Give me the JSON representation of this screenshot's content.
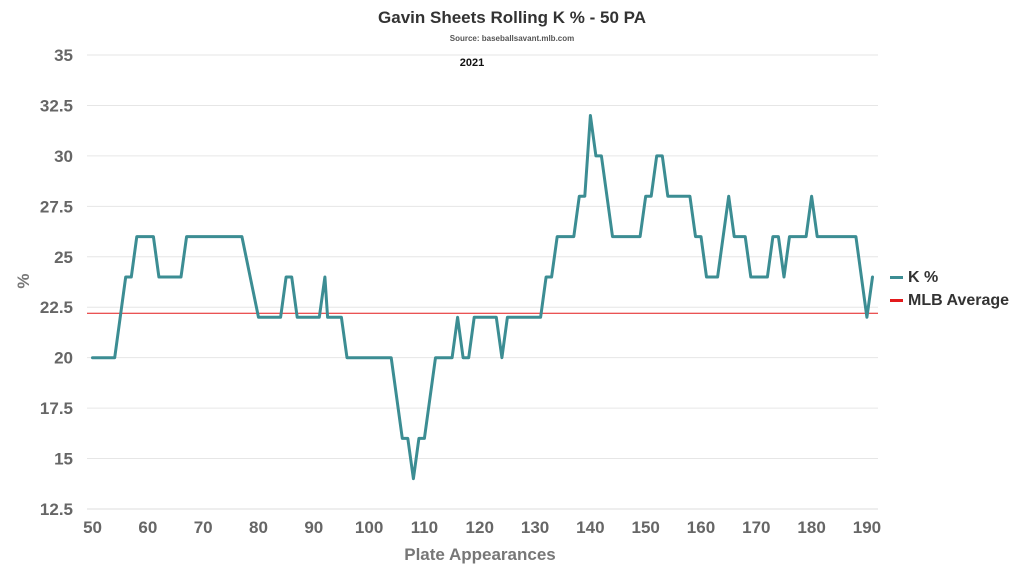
{
  "chart_data": {
    "type": "line",
    "title": "Gavin Sheets Rolling K % - 50 PA",
    "subtitle": "Source: baseballsavant.mlb.com",
    "year_label": "2021",
    "xlabel": "Plate Appearances",
    "ylabel": "%",
    "xlim": [
      49,
      192
    ],
    "ylim": [
      12.5,
      35
    ],
    "x_ticks": [
      50,
      60,
      70,
      80,
      90,
      100,
      110,
      120,
      130,
      140,
      150,
      160,
      170,
      180,
      190
    ],
    "y_ticks": [
      "12.5",
      "15",
      "17.5",
      "20",
      "22.5",
      "25",
      "27.5",
      "30",
      "32.5",
      "35"
    ],
    "grid": true,
    "legend_position": "right",
    "series": [
      {
        "name": "K %",
        "color": "#3c8d93",
        "points": [
          [
            50,
            20
          ],
          [
            54,
            20
          ],
          [
            56,
            24
          ],
          [
            57,
            24
          ],
          [
            58,
            26
          ],
          [
            61,
            26
          ],
          [
            62,
            24
          ],
          [
            66,
            24
          ],
          [
            67,
            26
          ],
          [
            77,
            26
          ],
          [
            80,
            22
          ],
          [
            84,
            22
          ],
          [
            85,
            24
          ],
          [
            86,
            24
          ],
          [
            87,
            22
          ],
          [
            91,
            22
          ],
          [
            92,
            24
          ],
          [
            92.5,
            22
          ],
          [
            95,
            22
          ],
          [
            96,
            20
          ],
          [
            104,
            20
          ],
          [
            106,
            16
          ],
          [
            107,
            16
          ],
          [
            108,
            14
          ],
          [
            109,
            16
          ],
          [
            110,
            16
          ],
          [
            112,
            20
          ],
          [
            115,
            20
          ],
          [
            116,
            22
          ],
          [
            117,
            20
          ],
          [
            118,
            20
          ],
          [
            119,
            22
          ],
          [
            123,
            22
          ],
          [
            124,
            20
          ],
          [
            125,
            22
          ],
          [
            131,
            22
          ],
          [
            132,
            24
          ],
          [
            133,
            24
          ],
          [
            134,
            26
          ],
          [
            137,
            26
          ],
          [
            138,
            28
          ],
          [
            139,
            28
          ],
          [
            140,
            32
          ],
          [
            141,
            30
          ],
          [
            142,
            30
          ],
          [
            144,
            26
          ],
          [
            149,
            26
          ],
          [
            150,
            28
          ],
          [
            151,
            28
          ],
          [
            152,
            30
          ],
          [
            153,
            30
          ],
          [
            154,
            28
          ],
          [
            158,
            28
          ],
          [
            159,
            26
          ],
          [
            160,
            26
          ],
          [
            161,
            24
          ],
          [
            163,
            24
          ],
          [
            165,
            28
          ],
          [
            166,
            26
          ],
          [
            168,
            26
          ],
          [
            169,
            24
          ],
          [
            172,
            24
          ],
          [
            173,
            26
          ],
          [
            174,
            26
          ],
          [
            175,
            24
          ],
          [
            176,
            26
          ],
          [
            179,
            26
          ],
          [
            180,
            28
          ],
          [
            181,
            26
          ],
          [
            188,
            26
          ],
          [
            190,
            22
          ],
          [
            191,
            24
          ]
        ]
      }
    ],
    "reference_line": {
      "name": "MLB Average",
      "value": 22.2,
      "color": "#e31a1c"
    }
  }
}
